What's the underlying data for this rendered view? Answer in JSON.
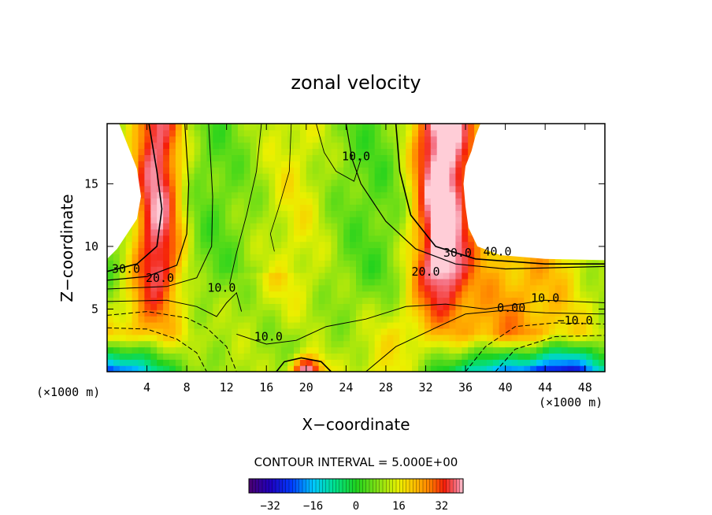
{
  "chart_data": {
    "type": "contour",
    "title": "zonal velocity",
    "xlabel": "X−coordinate",
    "ylabel": "Z−coordinate",
    "x_unit_left": "(×1000 m)",
    "x_unit_right": "(×1000 m)",
    "xlim": [
      0,
      50
    ],
    "ylim": [
      0,
      19.8
    ],
    "x_ticks": [
      4,
      8,
      12,
      16,
      20,
      24,
      28,
      32,
      36,
      40,
      44,
      48
    ],
    "x_tick_labels": [
      "4",
      "8",
      "12",
      "16",
      "20",
      "24",
      "28",
      "32",
      "36",
      "40",
      "44",
      "48"
    ],
    "y_ticks": [
      5,
      10,
      15
    ],
    "y_tick_labels": [
      "5",
      "10",
      "15"
    ],
    "contour_interval_text": "CONTOUR INTERVAL = 5.000E+00",
    "contour_interval": 5.0,
    "contour_labels": [
      {
        "text": "30.0",
        "x": 1.9,
        "y": 8.0
      },
      {
        "text": "20.0",
        "x": 5.3,
        "y": 7.3
      },
      {
        "text": "10.0",
        "x": 11.5,
        "y": 6.5
      },
      {
        "text": "10.0",
        "x": 16.2,
        "y": 2.6
      },
      {
        "text": "10.0",
        "x": 25.0,
        "y": 17.0
      },
      {
        "text": "30.0",
        "x": 35.2,
        "y": 9.3
      },
      {
        "text": "40.0",
        "x": 39.2,
        "y": 9.4
      },
      {
        "text": "20.0",
        "x": 32.0,
        "y": 7.8
      },
      {
        "text": "10.0",
        "x": 44.0,
        "y": 5.7
      },
      {
        "text": "0.00",
        "x": 40.6,
        "y": 4.9
      },
      {
        "text": "−10.0",
        "x": 47.0,
        "y": 3.9
      }
    ],
    "colorbar": {
      "min": -40,
      "max": 40,
      "tick_values": [
        -32,
        -16,
        0,
        16,
        32
      ],
      "tick_labels": [
        "−32",
        "−16",
        "0",
        "16",
        "32"
      ]
    }
  }
}
